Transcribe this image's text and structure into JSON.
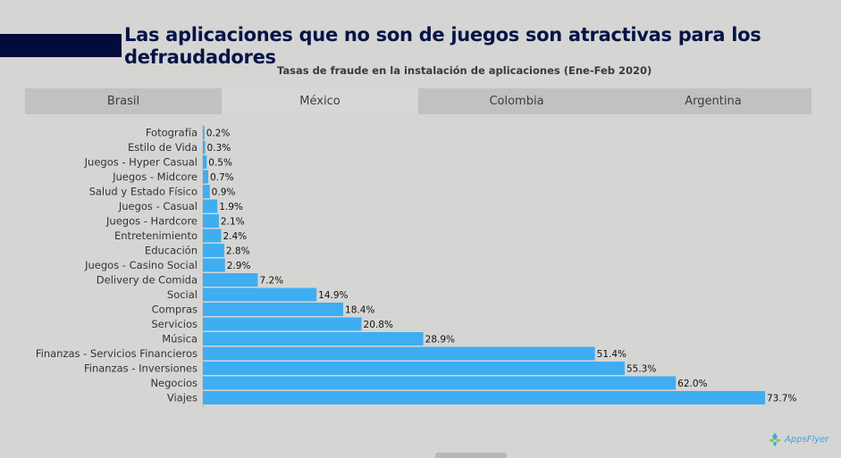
{
  "header": {
    "title": "Las aplicaciones que no son de juegos son atractivas para los defraudadores",
    "subtitle": "Tasas de fraude en la instalación de aplicaciones (Ene-Feb 2020)"
  },
  "tabs": [
    {
      "label": "Brasil",
      "active": false
    },
    {
      "label": "México",
      "active": true
    },
    {
      "label": "Colombia",
      "active": false
    },
    {
      "label": "Argentina",
      "active": false
    }
  ],
  "logo": {
    "text": "AppsFlyer"
  },
  "colors": {
    "bar": "#3fadf2",
    "title": "#061447",
    "accent": "#020b3c"
  },
  "chart_data": {
    "type": "bar",
    "orientation": "horizontal",
    "title": "Tasas de fraude en la instalación de aplicaciones (Ene-Feb 2020)",
    "xlabel": "",
    "ylabel": "",
    "xlim": [
      0,
      75
    ],
    "grid": false,
    "categories": [
      "Fotografía",
      "Estilo de Vida",
      "Juegos - Hyper Casual",
      "Juegos - Midcore",
      "Salud y Estado Físico",
      "Juegos - Casual",
      "Juegos - Hardcore",
      "Entretenimiento",
      "Educación",
      "Juegos - Casino Social",
      "Delivery de Comida",
      "Social",
      "Compras",
      "Servicios",
      "Música",
      "Finanzas - Servicios Financieros",
      "Finanzas - Inversiones",
      "Negocios",
      "Viajes"
    ],
    "values": [
      0.2,
      0.3,
      0.5,
      0.7,
      0.9,
      1.9,
      2.1,
      2.4,
      2.8,
      2.9,
      7.2,
      14.9,
      18.4,
      20.8,
      28.9,
      51.4,
      55.3,
      62.0,
      73.7
    ],
    "labels": [
      "0.2%",
      "0.3%",
      "0.5%",
      "0.7%",
      "0.9%",
      "1.9%",
      "2.1%",
      "2.4%",
      "2.8%",
      "2.9%",
      "7.2%",
      "14.9%",
      "18.4%",
      "20.8%",
      "28.9%",
      "51.4%",
      "55.3%",
      "62.0%",
      "73.7%"
    ]
  }
}
